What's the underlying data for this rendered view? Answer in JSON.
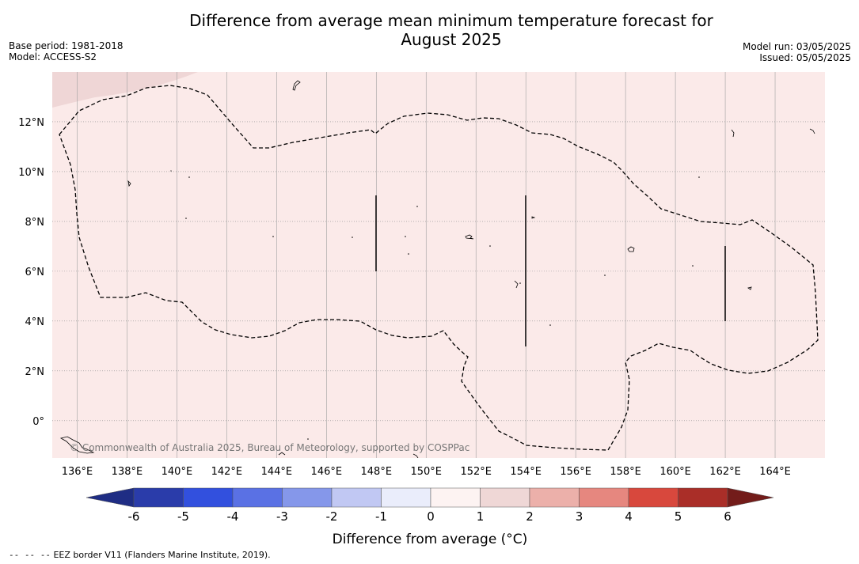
{
  "header": {
    "title_line1": "Difference from average mean minimum temperature forecast for",
    "title_line2": "August 2025",
    "base_period": "Base period: 1981-2018",
    "model": "Model: ACCESS-S2",
    "model_run": "Model run: 03/05/2025",
    "issued": "Issued: 05/05/2025"
  },
  "map": {
    "lon_range": [
      135,
      166
    ],
    "lat_range": [
      -1.5,
      14
    ],
    "lon_ticks": [
      "136°E",
      "138°E",
      "140°E",
      "142°E",
      "144°E",
      "146°E",
      "148°E",
      "150°E",
      "152°E",
      "154°E",
      "156°E",
      "158°E",
      "160°E",
      "162°E",
      "164°E"
    ],
    "lat_ticks": [
      "12°N",
      "10°N",
      "8°N",
      "6°N",
      "4°N",
      "2°N",
      "0°"
    ],
    "background_color": "#fbeae9",
    "corner_shade_color": "#efd6d6",
    "copyright": "© Commonwealth of Australia 2025, Bureau of Meteorology, supported by COSPPac",
    "eez_boundary_style": "dashed"
  },
  "colorbar": {
    "label": "Difference from average (°C)",
    "tick_labels": [
      "-6",
      "-5",
      "-4",
      "-3",
      "-2",
      "-1",
      "0",
      "1",
      "2",
      "3",
      "4",
      "5",
      "6"
    ],
    "colors": [
      "#1f2d84",
      "#2a3caa",
      "#3250de",
      "#5a71e4",
      "#8597ea",
      "#c1c8f3",
      "#eaedfb",
      "#fdf3f2",
      "#efd7d6",
      "#ecb0aa",
      "#e6877f",
      "#d8483d",
      "#aa2e28",
      "#731c1a"
    ],
    "extend": "both"
  },
  "footnote": {
    "dash": "--  --  --",
    "text": "EEZ border V11 (Flanders Marine Institute, 2019)."
  }
}
